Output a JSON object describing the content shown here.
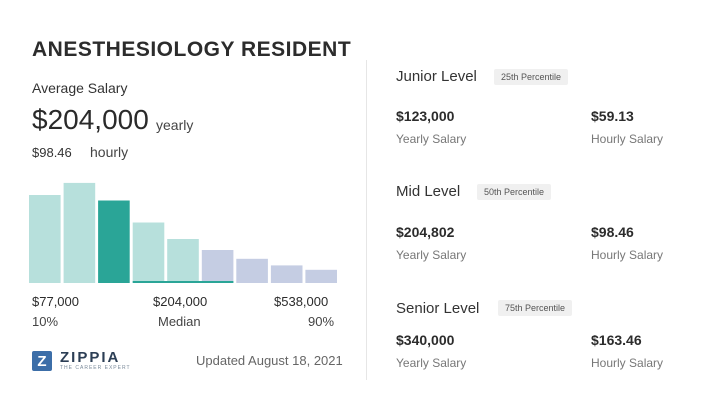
{
  "title": "ANESTHESIOLOGY RESIDENT",
  "average": {
    "label": "Average Salary",
    "amount": "$204,000",
    "unit": "yearly",
    "hourly_amount": "$98.46",
    "hourly_unit": "hourly"
  },
  "chart_data": {
    "type": "bar",
    "bar_heights_relative": [
      0.8,
      0.91,
      0.75,
      0.55,
      0.4,
      0.3,
      0.22,
      0.16,
      0.12
    ],
    "highlight_index": 2,
    "colors": {
      "low": "#b7e0dc",
      "highlight": "#2aa597",
      "high": "#c5cde3"
    },
    "x_tick_values": [
      "$77,000",
      "$204,000",
      "$538,000"
    ],
    "x_tick_labels": [
      "10%",
      "Median",
      "90%"
    ]
  },
  "brand": {
    "name": "ZIPPIA",
    "tagline": "THE CAREER EXPERT",
    "mark": "Z"
  },
  "updated": "Updated August 18, 2021",
  "levels": [
    {
      "name": "Junior Level",
      "percentile": "25th Percentile",
      "yearly": "$123,000",
      "yearly_label": "Yearly Salary",
      "hourly": "$59.13",
      "hourly_label": "Hourly Salary"
    },
    {
      "name": "Mid Level",
      "percentile": "50th Percentile",
      "yearly": "$204,802",
      "yearly_label": "Yearly Salary",
      "hourly": "$98.46",
      "hourly_label": "Hourly Salary"
    },
    {
      "name": "Senior Level",
      "percentile": "75th Percentile",
      "yearly": "$340,000",
      "yearly_label": "Yearly Salary",
      "hourly": "$163.46",
      "hourly_label": "Hourly Salary"
    }
  ]
}
